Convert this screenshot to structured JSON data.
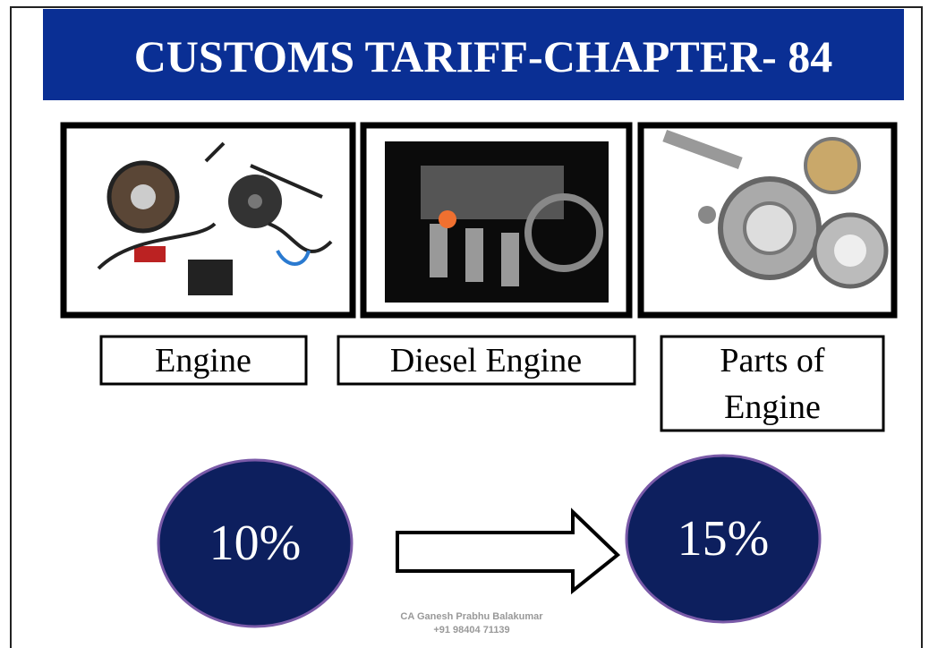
{
  "header": {
    "title": "CUSTOMS TARIFF-CHAPTER- 84"
  },
  "items": [
    {
      "label": [
        "Engine"
      ]
    },
    {
      "label": [
        "Diesel Engine"
      ]
    },
    {
      "label": [
        "Parts of",
        "Engine"
      ]
    }
  ],
  "rates": {
    "from": "10%",
    "to": "15%"
  },
  "footer": {
    "lines": [
      "CA Ganesh Prabhu Balakumar",
      "+91 98404 71139"
    ]
  }
}
